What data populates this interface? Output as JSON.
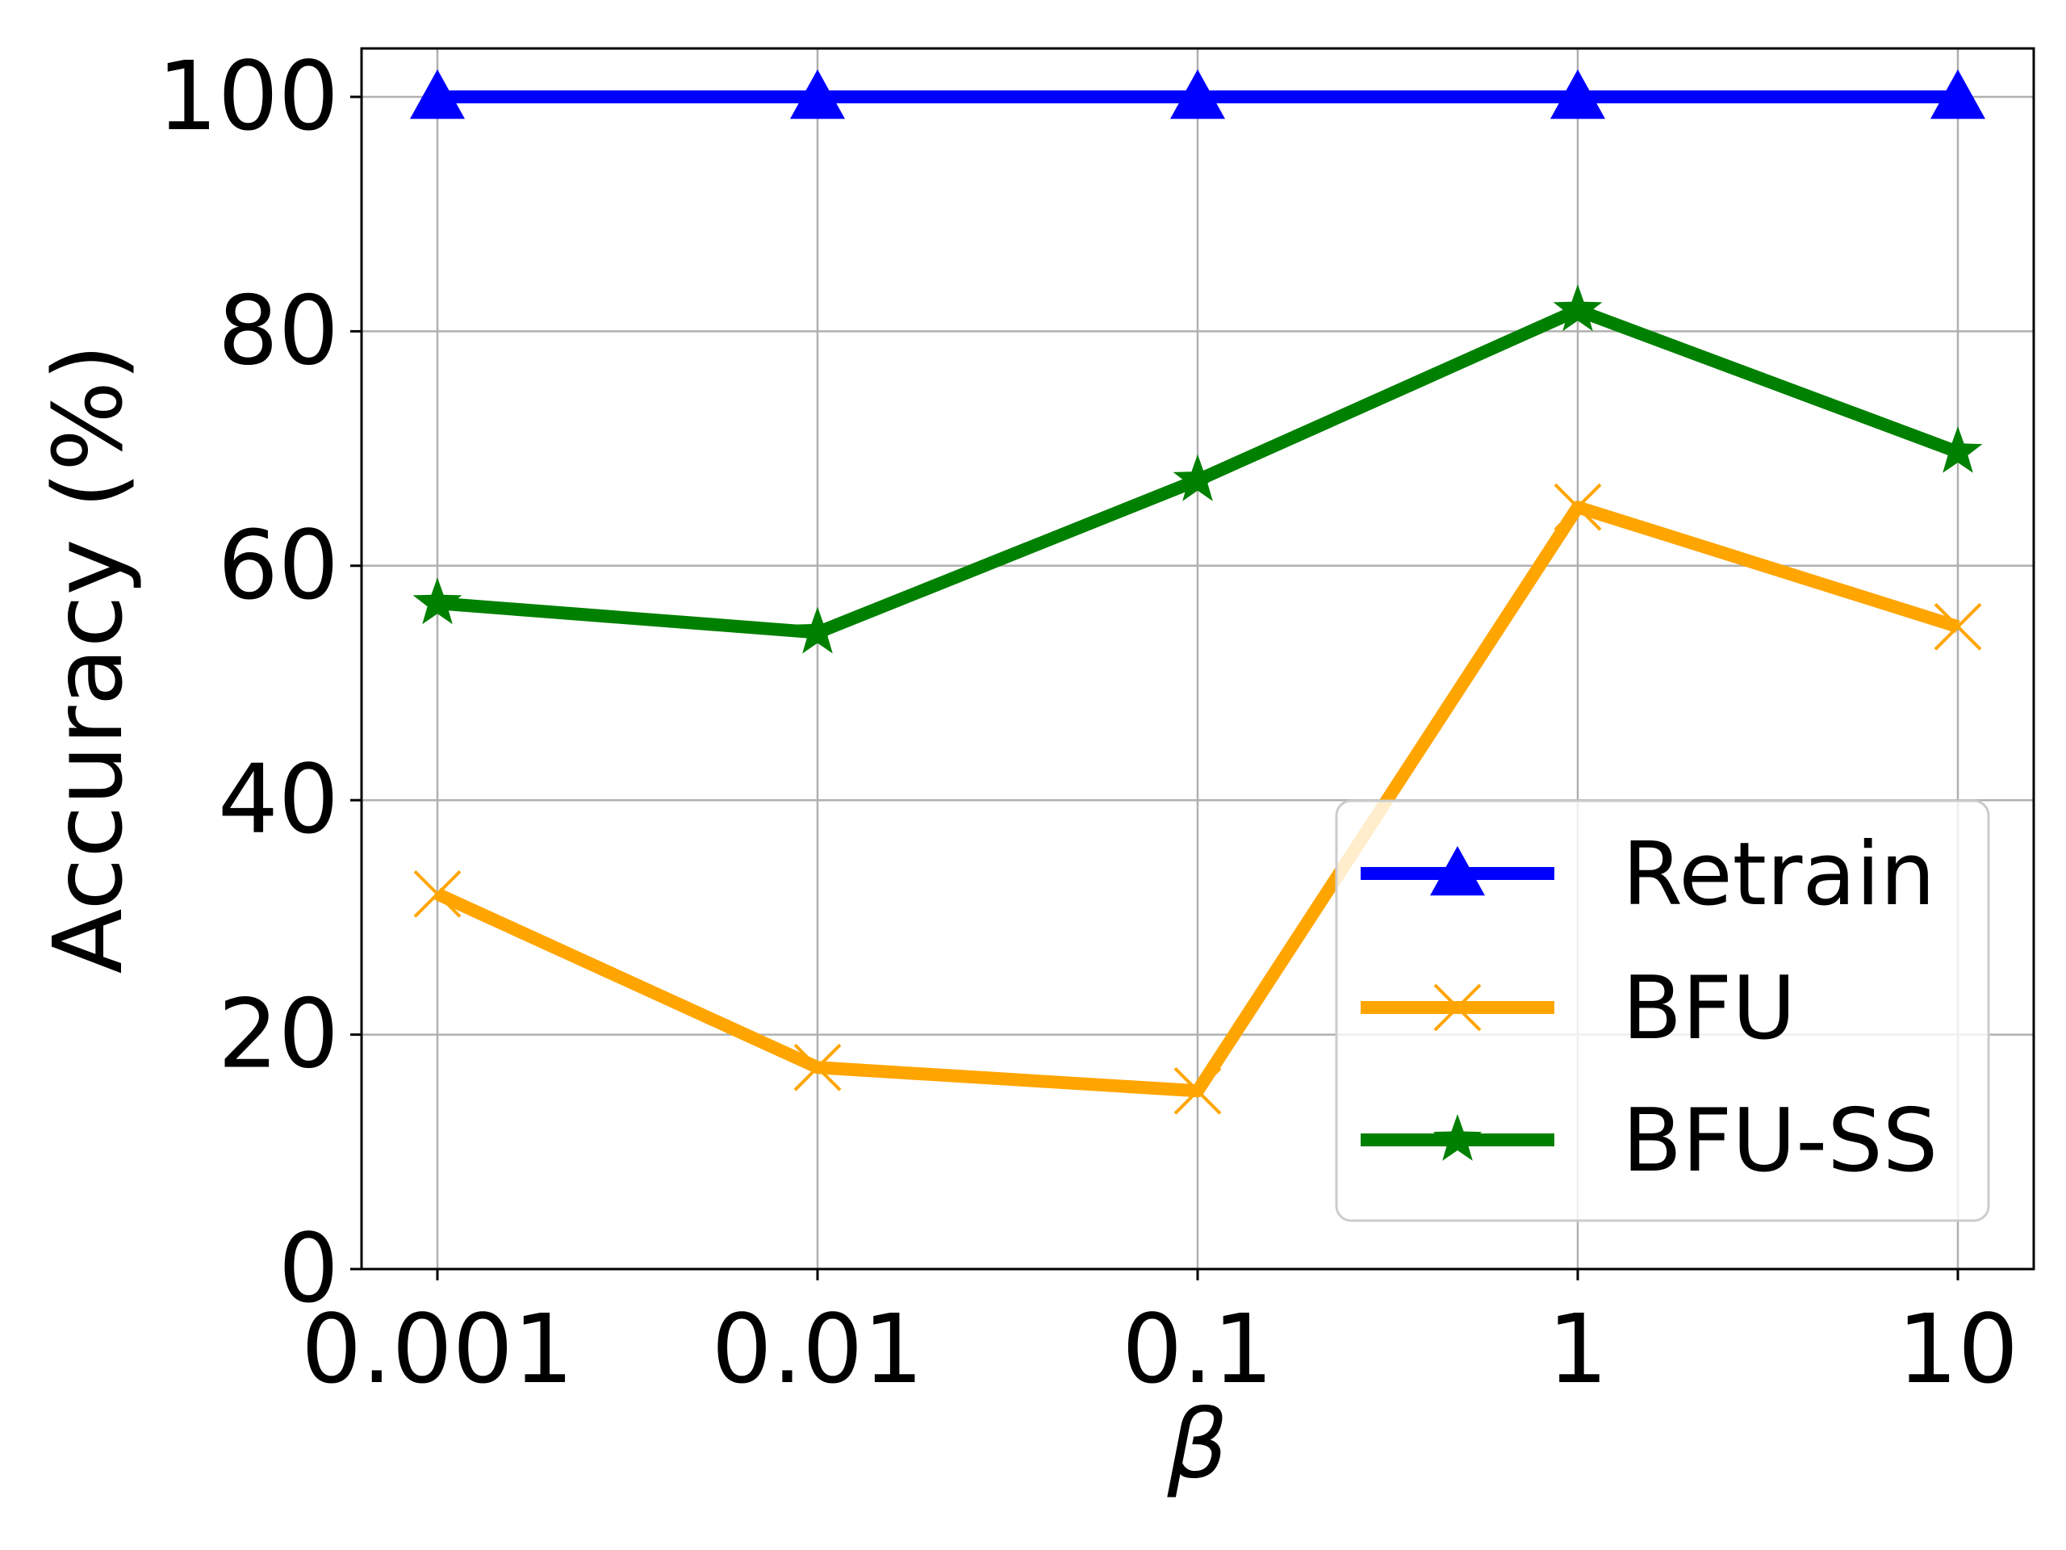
{
  "chart_data": {
    "type": "line",
    "title": "",
    "xlabel": "β",
    "ylabel": "Accuracy (%)",
    "x_scale": "log",
    "categories": [
      "0.001",
      "0.01",
      "0.1",
      "1",
      "10"
    ],
    "ylim": [
      0,
      100
    ],
    "y_ticks": [
      "0",
      "20",
      "40",
      "60",
      "80",
      "100"
    ],
    "grid": true,
    "legend_position": "lower-right",
    "series": [
      {
        "name": "Retrain",
        "values": [
          100,
          100,
          100,
          100,
          100
        ],
        "color": "#0000ff",
        "marker": "triangle"
      },
      {
        "name": "BFU",
        "values": [
          32,
          17.2,
          15.2,
          65,
          54.8
        ],
        "color": "#ffa500",
        "marker": "x"
      },
      {
        "name": "BFU-SS",
        "values": [
          56.8,
          54.3,
          67.3,
          81.8,
          69.7
        ],
        "color": "#008000",
        "marker": "star"
      }
    ]
  }
}
